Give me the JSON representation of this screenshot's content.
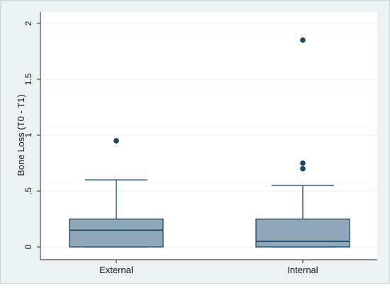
{
  "chart_data": {
    "type": "box",
    "title": "",
    "xlabel": "",
    "ylabel": "Bone Loss (T0 - T1)",
    "ylim": [
      0,
      2
    ],
    "yticks": [
      {
        "value": 0,
        "label": "0"
      },
      {
        "value": 0.5,
        "label": ".5"
      },
      {
        "value": 1,
        "label": "1"
      },
      {
        "value": 1.5,
        "label": "1.5"
      },
      {
        "value": 2,
        "label": "2"
      }
    ],
    "grid": true,
    "legend": "none",
    "categories": [
      "External",
      "Internal"
    ],
    "boxes": [
      {
        "category": "External",
        "whisker_low": 0,
        "q1": 0,
        "median": 0.15,
        "q3": 0.25,
        "whisker_high": 0.6,
        "outliers": [
          0.95
        ]
      },
      {
        "category": "Internal",
        "whisker_low": 0,
        "q1": 0,
        "median": 0.05,
        "q3": 0.25,
        "whisker_high": 0.55,
        "outliers": [
          0.7,
          0.75,
          1.85
        ]
      }
    ],
    "colors": {
      "box_fill": "#8ea7b9",
      "box_stroke": "#1a4766",
      "outlier": "#1a4766",
      "plot_background": "#ffffff",
      "outer_background": "#eaf2f3",
      "grid": "#eaf2f3"
    }
  }
}
